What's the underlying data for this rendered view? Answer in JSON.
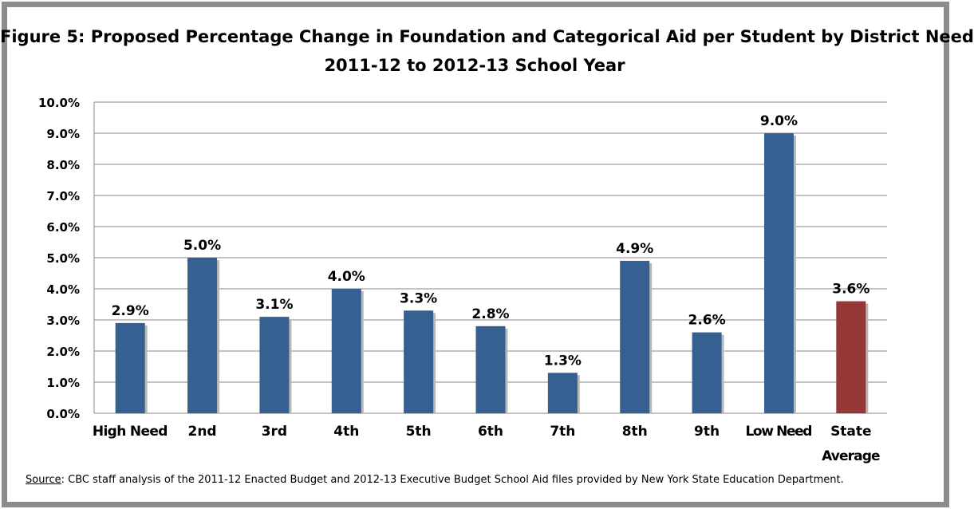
{
  "chart_data": {
    "type": "bar",
    "title": "Figure 5: Proposed Percentage Change in Foundation and Categorical Aid per Student by District Need",
    "subtitle": "2011-12 to 2012-13 School Year",
    "categories": [
      "High Need",
      "2nd",
      "3rd",
      "4th",
      "5th",
      "6th",
      "7th",
      "8th",
      "9th",
      "Low Need",
      "State Average"
    ],
    "values": [
      2.9,
      5.0,
      3.1,
      4.0,
      3.3,
      2.8,
      1.3,
      4.9,
      2.6,
      9.0,
      3.6
    ],
    "data_labels": [
      "2.9%",
      "5.0%",
      "3.1%",
      "4.0%",
      "3.3%",
      "2.8%",
      "1.3%",
      "4.9%",
      "2.6%",
      "9.0%",
      "3.6%"
    ],
    "yticks": [
      "0.0%",
      "1.0%",
      "2.0%",
      "3.0%",
      "4.0%",
      "5.0%",
      "6.0%",
      "7.0%",
      "8.0%",
      "9.0%",
      "10.0%"
    ],
    "ylim": [
      0,
      10
    ],
    "xlabel": "",
    "ylabel": "",
    "grid": true,
    "legend": "none",
    "colors": {
      "bar": "#376092",
      "highlight": "#953735",
      "grid": "#878787",
      "frame": "#8c8c8c"
    },
    "highlight_index": 10
  },
  "source": {
    "label": "Source",
    "text": ": CBC staff analysis of the 2011-12 Enacted Budget and 2012-13 Executive Budget School Aid files provided by New York State Education Department."
  }
}
